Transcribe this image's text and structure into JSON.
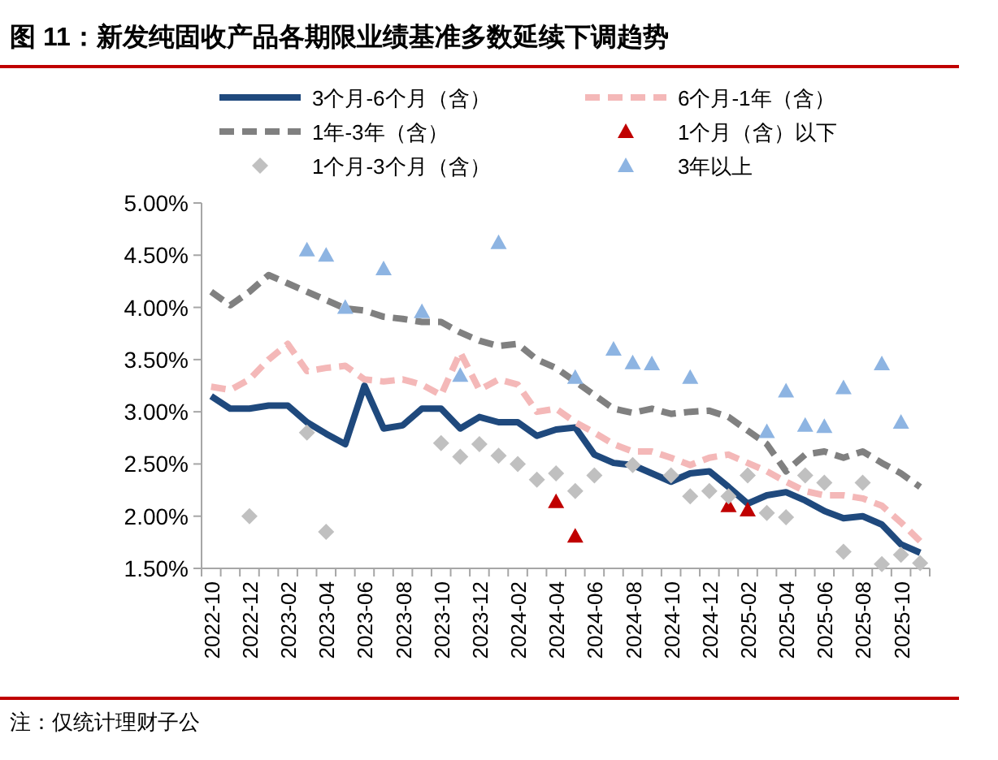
{
  "chart_data": {
    "type": "line",
    "title": "图 11：新发纯固收产品各期限业绩基准多数延续下调趋势",
    "annotations": [
      "注：仅统计理财子公"
    ],
    "categories": [
      "2022-10",
      null,
      "2022-12",
      null,
      "2023-02",
      null,
      "2023-04",
      null,
      "2023-06",
      null,
      "2023-08",
      null,
      "2023-10",
      null,
      "2023-12",
      null,
      "2024-02",
      null,
      "2024-04",
      null,
      "2024-06",
      null,
      "2024-08",
      null,
      "2024-10",
      null,
      "2024-12",
      null,
      "2025-02",
      null,
      "2025-04",
      null,
      "2025-06",
      null,
      "2025-08",
      null,
      "2025-10",
      null
    ],
    "ylim": [
      1.5,
      5.0
    ],
    "yticks": [
      {
        "value": 1.5,
        "label": "1.50%"
      },
      {
        "value": 2.0,
        "label": "2.00%"
      },
      {
        "value": 2.5,
        "label": "2.50%"
      },
      {
        "value": 3.0,
        "label": "3.00%"
      },
      {
        "value": 3.5,
        "label": "3.50%"
      },
      {
        "value": 4.0,
        "label": "4.00%"
      },
      {
        "value": 4.5,
        "label": "4.50%"
      },
      {
        "value": 5.0,
        "label": "5.00%"
      }
    ],
    "legend": "top",
    "series": [
      {
        "name": "3个月-6个月（含）",
        "type": "line",
        "line_style": "solid",
        "color": "#1f497d",
        "values": [
          3.15,
          3.03,
          3.03,
          3.06,
          3.06,
          2.9,
          2.79,
          2.69,
          3.25,
          2.84,
          2.87,
          3.03,
          3.03,
          2.84,
          2.95,
          2.9,
          2.9,
          2.77,
          2.83,
          2.85,
          2.59,
          2.51,
          2.49,
          2.41,
          2.33,
          2.41,
          2.43,
          2.28,
          2.12,
          2.2,
          2.23,
          2.15,
          2.05,
          1.98,
          2.0,
          1.92,
          1.73,
          1.65
        ]
      },
      {
        "name": "6个月-1年（含）",
        "type": "line",
        "line_style": "dashed",
        "color": "#f4b8b8",
        "values": [
          3.24,
          3.21,
          3.31,
          3.5,
          3.65,
          3.39,
          3.42,
          3.44,
          3.31,
          3.29,
          3.31,
          3.26,
          3.16,
          3.57,
          3.21,
          3.31,
          3.26,
          3.0,
          3.03,
          2.9,
          2.8,
          2.69,
          2.62,
          2.62,
          2.56,
          2.49,
          2.56,
          2.59,
          2.51,
          2.43,
          2.33,
          2.24,
          2.2,
          2.2,
          2.17,
          2.1,
          1.94,
          1.76
        ]
      },
      {
        "name": "1年-3年（含）",
        "type": "line",
        "line_style": "dashed",
        "color": "#808080",
        "values": [
          4.15,
          4.02,
          4.15,
          4.31,
          4.23,
          4.15,
          4.07,
          3.99,
          3.97,
          3.91,
          3.89,
          3.86,
          3.86,
          3.76,
          3.68,
          3.63,
          3.65,
          3.5,
          3.42,
          3.29,
          3.16,
          3.03,
          2.99,
          3.03,
          2.98,
          3.0,
          3.01,
          2.95,
          2.82,
          2.69,
          2.43,
          2.59,
          2.62,
          2.56,
          2.62,
          2.51,
          2.41,
          2.28
        ]
      },
      {
        "name": "1个月（含）以下",
        "type": "scatter",
        "marker": "triangle",
        "color": "#c00000",
        "values": [
          null,
          null,
          null,
          null,
          null,
          null,
          null,
          null,
          null,
          null,
          null,
          null,
          null,
          null,
          null,
          null,
          null,
          null,
          2.14,
          1.81,
          null,
          null,
          null,
          null,
          null,
          null,
          null,
          2.1,
          2.06,
          null,
          null,
          null,
          null,
          null,
          null,
          null,
          null,
          null
        ]
      },
      {
        "name": "1个月-3个月（含）",
        "type": "scatter",
        "marker": "diamond",
        "color": "#c0c0c0",
        "values": [
          null,
          null,
          2.0,
          null,
          null,
          2.8,
          1.85,
          null,
          null,
          null,
          null,
          null,
          2.7,
          2.57,
          2.69,
          2.58,
          2.5,
          2.35,
          2.41,
          2.24,
          2.39,
          null,
          2.49,
          null,
          2.39,
          2.19,
          2.24,
          2.19,
          2.39,
          2.03,
          1.99,
          2.39,
          2.32,
          1.66,
          2.32,
          1.54,
          1.63,
          1.55
        ]
      },
      {
        "name": "3年以上",
        "type": "scatter",
        "marker": "triangle",
        "color": "#8db4e2",
        "values": [
          null,
          null,
          null,
          null,
          null,
          4.55,
          4.5,
          4.0,
          null,
          4.37,
          null,
          3.96,
          null,
          3.35,
          null,
          4.62,
          null,
          null,
          null,
          3.33,
          null,
          3.6,
          3.47,
          3.46,
          null,
          3.33,
          null,
          null,
          null,
          2.81,
          3.2,
          2.87,
          2.86,
          3.23,
          null,
          3.46,
          2.9,
          null
        ]
      }
    ]
  }
}
